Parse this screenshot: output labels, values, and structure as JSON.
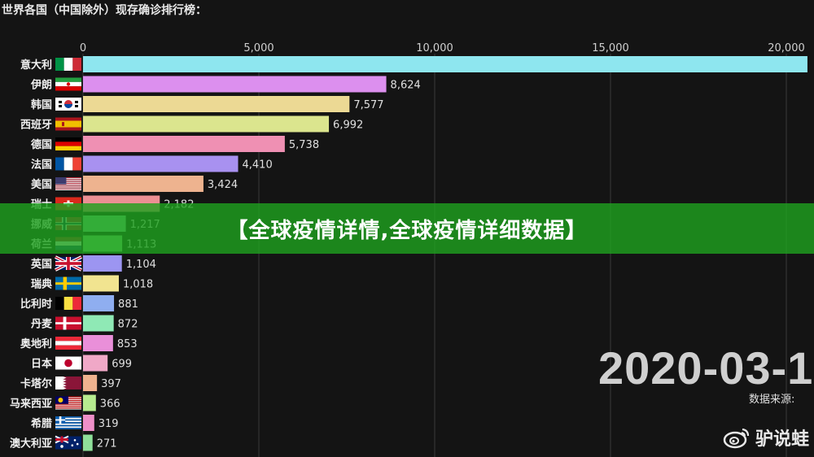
{
  "title": "世界各国（中国除外）现存确诊排行榜：",
  "banner": "【全球疫情详情,全球疫情详细数据】",
  "date": "2020-03-1",
  "source": "数据来源: ",
  "watermark": "驴说蛙",
  "chart_data": {
    "type": "bar",
    "orientation": "horizontal",
    "title": "世界各国（中国除外）现存确诊排行榜：",
    "xlim": [
      0,
      20000
    ],
    "xticks": [
      0,
      5000,
      10000,
      15000,
      20000
    ],
    "xtick_labels": [
      "0",
      "5,000",
      "10,000",
      "15,000",
      "20,000"
    ],
    "categories": [
      "意大利",
      "伊朗",
      "韩国",
      "西班牙",
      "德国",
      "法国",
      "美国",
      "瑞士",
      "挪威",
      "荷兰",
      "英国",
      "瑞典",
      "比利时",
      "丹麦",
      "奥地利",
      "日本",
      "卡塔尔",
      "马来西亚",
      "希腊",
      "澳大利亚"
    ],
    "values": [
      20600,
      8624,
      7577,
      6992,
      5738,
      4410,
      3424,
      2182,
      1217,
      1113,
      1104,
      1018,
      881,
      872,
      853,
      699,
      397,
      366,
      319,
      271
    ],
    "value_labels": [
      "",
      "8,624",
      "7,577",
      "6,992",
      "5,738",
      "4,410",
      "3,424",
      "2,182",
      "1,217",
      "1,113",
      "1,104",
      "1,018",
      "881",
      "872",
      "853",
      "699",
      "397",
      "366",
      "319",
      "271"
    ],
    "colors": [
      "#8ee6ef",
      "#dc8fee",
      "#ecd994",
      "#dbe58e",
      "#ef90b3",
      "#a891f0",
      "#eeb38f",
      "#ec8f93",
      "#8fe6ad",
      "#92ee8f",
      "#9c95f1",
      "#f1e490",
      "#8faef0",
      "#8fe9b5",
      "#e98fd9",
      "#f0a8c7",
      "#efb38f",
      "#b7ec8f",
      "#ee8fc8",
      "#8fdf9a"
    ],
    "flags": [
      "it",
      "ir",
      "kr",
      "es",
      "de",
      "fr",
      "us",
      "ch",
      "no",
      "nl",
      "gb",
      "se",
      "be",
      "dk",
      "at",
      "jp",
      "qa",
      "my",
      "gr",
      "au"
    ],
    "grid": true,
    "legend": "none"
  }
}
